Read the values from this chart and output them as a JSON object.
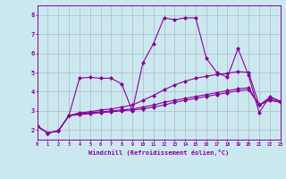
{
  "bg_color": "#cce8ef",
  "grid_color": "#aabbcc",
  "line_color": "#880099",
  "xlim": [
    0,
    23
  ],
  "ylim": [
    1.5,
    8.5
  ],
  "xticks": [
    0,
    1,
    2,
    3,
    4,
    5,
    6,
    7,
    8,
    9,
    10,
    11,
    12,
    13,
    14,
    15,
    16,
    17,
    18,
    19,
    20,
    21,
    22,
    23
  ],
  "yticks": [
    2,
    3,
    4,
    5,
    6,
    7,
    8
  ],
  "xlabel": "Windchill (Refroidissement éolien,°C)",
  "lines": [
    [
      2.2,
      1.85,
      1.95,
      2.75,
      4.7,
      4.75,
      4.7,
      4.7,
      4.4,
      3.0,
      5.5,
      6.5,
      7.85,
      7.75,
      7.85,
      7.85,
      5.75,
      5.0,
      4.75,
      6.25,
      4.85,
      2.9,
      3.75,
      3.5
    ],
    [
      2.2,
      1.85,
      1.95,
      2.75,
      2.8,
      2.85,
      2.9,
      2.95,
      3.0,
      3.05,
      3.1,
      3.2,
      3.3,
      3.45,
      3.55,
      3.65,
      3.75,
      3.85,
      3.95,
      4.05,
      4.1,
      3.3,
      3.55,
      3.45
    ],
    [
      2.2,
      1.85,
      1.95,
      2.75,
      2.9,
      2.95,
      3.05,
      3.1,
      3.2,
      3.3,
      3.55,
      3.8,
      4.1,
      4.35,
      4.55,
      4.7,
      4.8,
      4.9,
      4.95,
      5.05,
      5.0,
      3.3,
      3.7,
      3.5
    ],
    [
      2.2,
      1.85,
      1.95,
      2.75,
      2.85,
      2.9,
      2.95,
      3.0,
      3.05,
      3.1,
      3.2,
      3.3,
      3.45,
      3.55,
      3.65,
      3.75,
      3.85,
      3.95,
      4.05,
      4.15,
      4.2,
      3.3,
      3.6,
      3.45
    ]
  ]
}
